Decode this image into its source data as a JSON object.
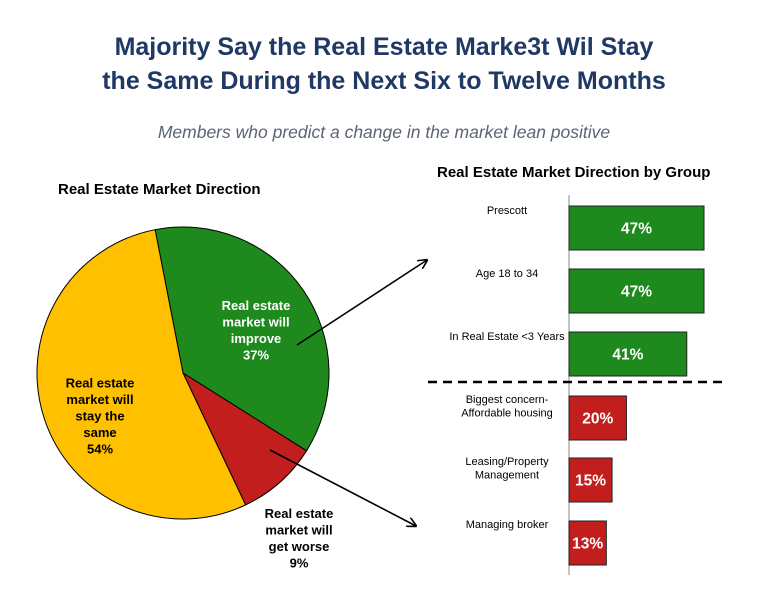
{
  "title_lines": [
    "Majority Say the Real Estate Marke3t Wil Stay",
    "the Same During the Next Six to Twelve Months"
  ],
  "subtitle": "Members who predict a change in the market lean positive",
  "chart_data": [
    {
      "type": "pie",
      "title": "Real Estate Market Direction",
      "slices": [
        {
          "label_lines": [
            "Real estate",
            "market will",
            "improve",
            "37%"
          ],
          "value": 37,
          "color": "#1E8A1E",
          "text_color": "#ffffff"
        },
        {
          "label_lines": [
            "Real estate",
            "market will",
            "get worse",
            "9%"
          ],
          "value": 9,
          "color": "#C21E1E",
          "text_color": "#000000"
        },
        {
          "label_lines": [
            "Real estate",
            "market will",
            "stay the",
            "same",
            "54%"
          ],
          "value": 54,
          "color": "#FFC000",
          "text_color": "#000000"
        }
      ]
    },
    {
      "type": "bar",
      "orientation": "horizontal",
      "title": "Real Estate Market Direction by Group",
      "categories": [
        [
          "Prescott"
        ],
        [
          "Age 18 to 34"
        ],
        [
          "In Real Estate <3 Years"
        ],
        [
          "Biggest concern-",
          "Affordable housing"
        ],
        [
          "Leasing/Property",
          "Management"
        ],
        [
          "Managing broker"
        ]
      ],
      "values": [
        47,
        47,
        41,
        20,
        15,
        13
      ],
      "value_labels": [
        "47%",
        "47%",
        "41%",
        "20%",
        "15%",
        "13%"
      ],
      "colors": [
        "#1E8A1E",
        "#1E8A1E",
        "#1E8A1E",
        "#C21E1E",
        "#C21E1E",
        "#C21E1E"
      ],
      "separator_after_index": 2
    }
  ]
}
